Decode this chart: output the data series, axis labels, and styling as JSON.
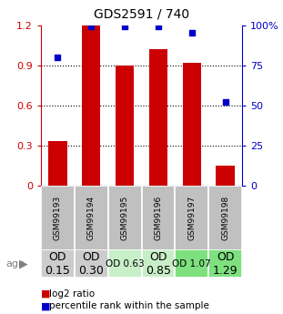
{
  "title": "GDS2591 / 740",
  "samples": [
    "GSM99193",
    "GSM99194",
    "GSM99195",
    "GSM99196",
    "GSM99197",
    "GSM99198"
  ],
  "log2_ratios": [
    0.33,
    1.2,
    0.9,
    1.02,
    0.92,
    0.15
  ],
  "percentile_ranks": [
    80,
    99,
    99,
    99,
    95,
    52
  ],
  "od_values": [
    "OD\n0.15",
    "OD\n0.30",
    "OD 0.63",
    "OD\n0.85",
    "OD 1.07",
    "OD\n1.29"
  ],
  "od_bg_colors": [
    "#cccccc",
    "#cccccc",
    "#c8f0c8",
    "#c8eec8",
    "#7ee07e",
    "#7ee07e"
  ],
  "od_font_sizes": [
    9,
    9,
    7.5,
    9,
    7.5,
    9
  ],
  "bar_color": "#cc0000",
  "dot_color": "#0000cc",
  "y_ticks_left": [
    0,
    0.3,
    0.6,
    0.9,
    1.2
  ],
  "y_ticks_right": [
    0,
    25,
    50,
    75,
    100
  ],
  "y_ticks_right_labels": [
    "0",
    "25",
    "50",
    "75",
    "100%"
  ],
  "left_tick_color": "#cc0000",
  "right_tick_color": "#0000cc",
  "sample_bg_color": "#c0c0c0",
  "legend_log2": "log2 ratio",
  "legend_pct": "percentile rank within the sample"
}
